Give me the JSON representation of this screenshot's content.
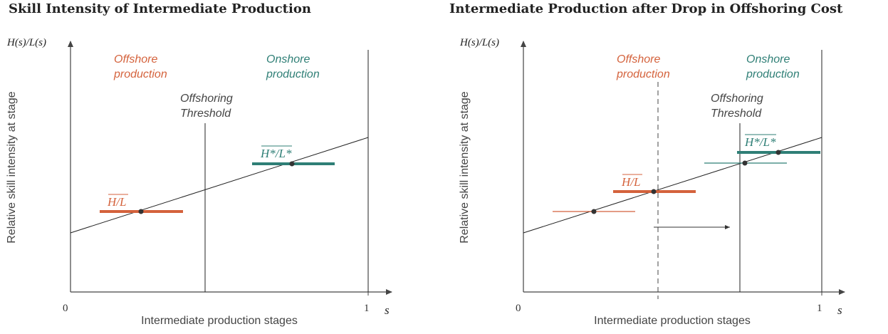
{
  "panels": [
    {
      "title": "Skill Intensity of Intermediate Production",
      "y_axis_symbol": "H(s)/L(s)",
      "y_axis_label": "Relative skill intensity at stage",
      "x_axis_label": "Intermediate production stages",
      "x_axis_symbol": "s",
      "x_origin_label": "0",
      "x_end_label": "1",
      "region_left": [
        "Offshore",
        "production"
      ],
      "region_right": [
        "Onshore",
        "production"
      ],
      "threshold_label": [
        "Offshoring",
        "Threshold"
      ],
      "avg_offshore_label": "H/L",
      "avg_onshore_label": "H*/L*"
    },
    {
      "title": "Intermediate Production after Drop in Offshoring Cost",
      "y_axis_symbol": "H(s)/L(s)",
      "y_axis_label": "Relative skill intensity at stage",
      "x_axis_label": "Intermediate production stages",
      "x_axis_symbol": "s",
      "x_origin_label": "0",
      "x_end_label": "1",
      "region_left": [
        "Offshore",
        "production"
      ],
      "region_right": [
        "Onshore",
        "production"
      ],
      "threshold_label": [
        "Offshoring",
        "Threshold"
      ],
      "avg_offshore_label": "H/L",
      "avg_onshore_label": "H*/L*"
    }
  ],
  "colors": {
    "offshore": "#d4623c",
    "onshore": "#2f7f76",
    "axis": "#444444",
    "line": "#222222",
    "text": "#444444"
  }
}
